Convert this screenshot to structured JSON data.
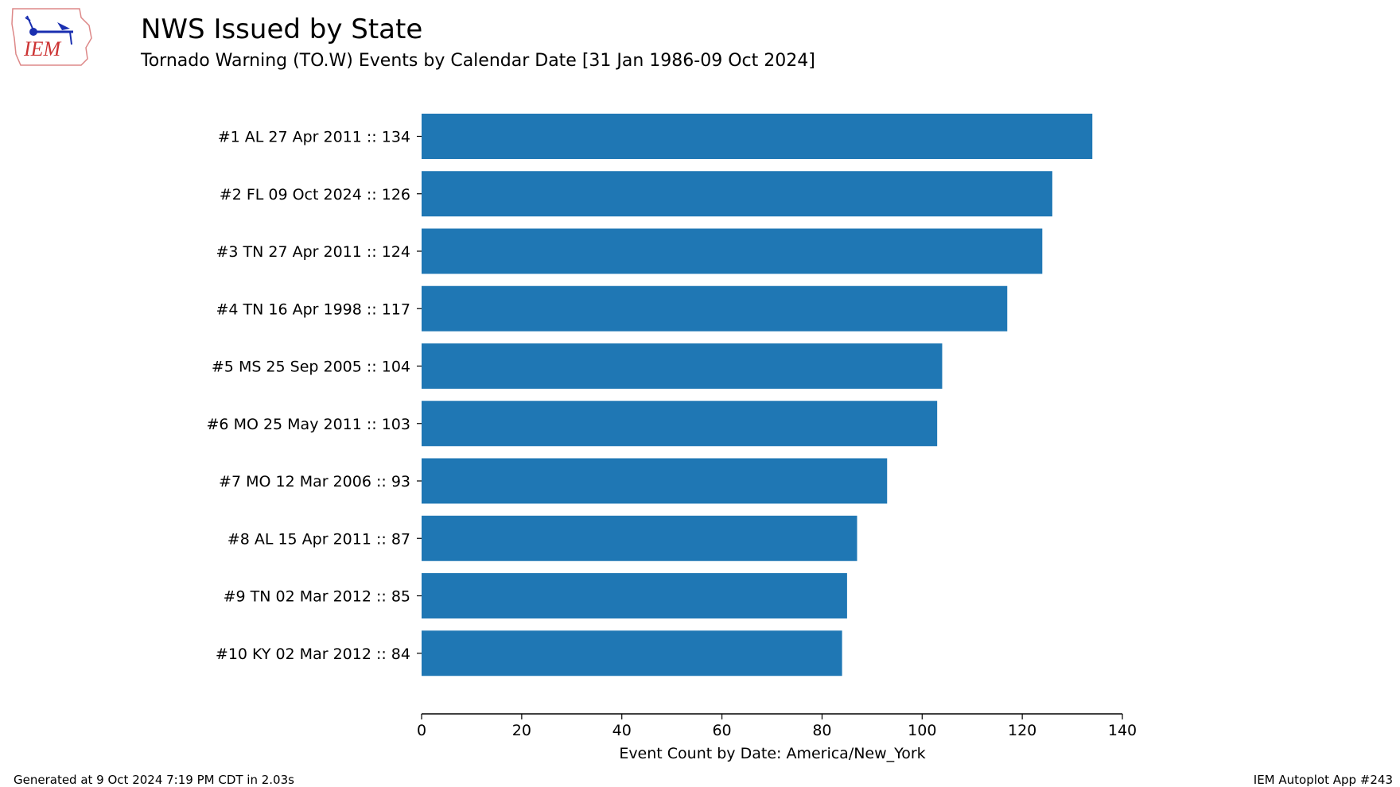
{
  "header": {
    "title": "NWS Issued by State",
    "subtitle": "Tornado Warning (TO.W) Events by Calendar Date [31 Jan 1986-09 Oct 2024]",
    "logo_text": "IEM"
  },
  "footer": {
    "left": "Generated at 9 Oct 2024 7:19 PM CDT in 2.03s",
    "right": "IEM Autoplot App #243"
  },
  "chart_data": {
    "type": "bar",
    "orientation": "horizontal",
    "categories": [
      "#1 AL 27 Apr 2011 :: 134",
      "#2 FL 09 Oct 2024 :: 126",
      "#3 TN 27 Apr 2011 :: 124",
      "#4 TN 16 Apr 1998 :: 117",
      "#5 MS 25 Sep 2005 :: 104",
      "#6 MO 25 May 2011 :: 103",
      "#7 MO 12 Mar 2006 :: 93",
      "#8 AL 15 Apr 2011 :: 87",
      "#9 TN 02 Mar 2012 :: 85",
      "#10 KY 02 Mar 2012 :: 84"
    ],
    "values": [
      134,
      126,
      124,
      117,
      104,
      103,
      93,
      87,
      85,
      84
    ],
    "xlabel": "Event Count by Date: America/New_York",
    "xlim": [
      0,
      140
    ],
    "xticks": [
      0,
      20,
      40,
      60,
      80,
      100,
      120,
      140
    ],
    "grid": false,
    "bar_color": "#1f77b4"
  }
}
